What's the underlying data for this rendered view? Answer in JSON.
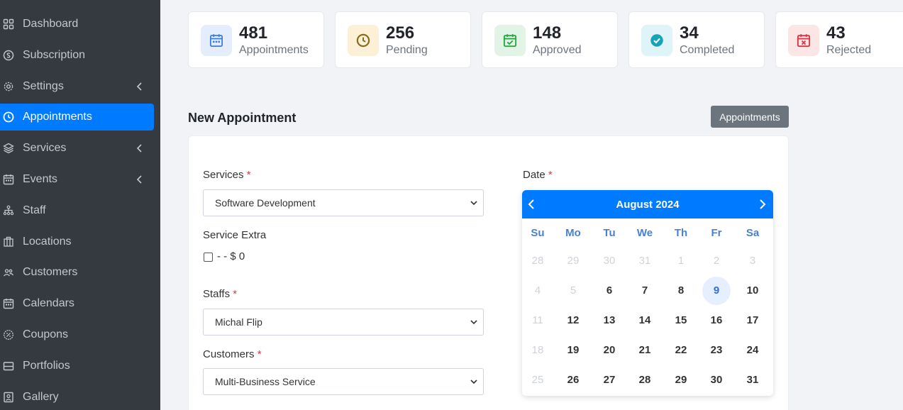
{
  "sidebar": {
    "items": [
      {
        "label": "Dashboard",
        "icon": "grid-icon",
        "submenu": false,
        "active": false
      },
      {
        "label": "Subscription",
        "icon": "dollar-circle-icon",
        "submenu": false,
        "active": false
      },
      {
        "label": "Settings",
        "icon": "gear-icon",
        "submenu": true,
        "active": false
      },
      {
        "label": "Appointments",
        "icon": "clock-icon",
        "submenu": false,
        "active": true
      },
      {
        "label": "Services",
        "icon": "layers-icon",
        "submenu": true,
        "active": false
      },
      {
        "label": "Events",
        "icon": "calendar-icon",
        "submenu": true,
        "active": false
      },
      {
        "label": "Staff",
        "icon": "org-chart-icon",
        "submenu": false,
        "active": false
      },
      {
        "label": "Locations",
        "icon": "building-icon",
        "submenu": false,
        "active": false
      },
      {
        "label": "Customers",
        "icon": "users-icon",
        "submenu": false,
        "active": false
      },
      {
        "label": "Calendars",
        "icon": "calendar-icon",
        "submenu": false,
        "active": false
      },
      {
        "label": "Coupons",
        "icon": "percent-badge-icon",
        "submenu": false,
        "active": false
      },
      {
        "label": "Portfolios",
        "icon": "portfolio-icon",
        "submenu": false,
        "active": false
      },
      {
        "label": "Gallery",
        "icon": "image-icon",
        "submenu": false,
        "active": false
      }
    ]
  },
  "stats": [
    {
      "value": "481",
      "label": "Appointments",
      "icon": "calendar-icon",
      "bg": "#e3edfc",
      "color": "#3b7ddd"
    },
    {
      "value": "256",
      "label": "Pending",
      "icon": "clock-icon",
      "bg": "#fcf1d6",
      "color": "#8a6d1f"
    },
    {
      "value": "148",
      "label": "Approved",
      "icon": "calendar-check-icon",
      "bg": "#e2f4e6",
      "color": "#28a745"
    },
    {
      "value": "34",
      "label": "Completed",
      "icon": "check-circle-icon",
      "bg": "#dff4f8",
      "color": "#17a2b8"
    },
    {
      "value": "43",
      "label": "Rejected",
      "icon": "calendar-x-icon",
      "bg": "#fbe6e6",
      "color": "#dc3545"
    }
  ],
  "section": {
    "title": "New Appointment",
    "button_label": "Appointments"
  },
  "form": {
    "services": {
      "label": "Services",
      "required_mark": "*",
      "value": "Software Development"
    },
    "service_extra": {
      "label": "Service Extra",
      "option_label": "- - $ 0"
    },
    "staffs": {
      "label": "Staffs",
      "required_mark": "*",
      "value": "Michal Flip"
    },
    "customers": {
      "label": "Customers",
      "required_mark": "*",
      "value": "Multi-Business Service"
    },
    "date": {
      "label": "Date",
      "required_mark": "*"
    }
  },
  "calendar": {
    "month_label": "August 2024",
    "weekdays": [
      "Su",
      "Mo",
      "Tu",
      "We",
      "Th",
      "Fr",
      "Sa"
    ],
    "weeks": [
      [
        {
          "d": "28",
          "m": true
        },
        {
          "d": "29",
          "m": true
        },
        {
          "d": "30",
          "m": true
        },
        {
          "d": "31",
          "m": true
        },
        {
          "d": "1",
          "m": true
        },
        {
          "d": "2",
          "m": true
        },
        {
          "d": "3",
          "m": true
        }
      ],
      [
        {
          "d": "4",
          "m": true
        },
        {
          "d": "5",
          "m": true
        },
        {
          "d": "6"
        },
        {
          "d": "7"
        },
        {
          "d": "8"
        },
        {
          "d": "9",
          "today": true
        },
        {
          "d": "10"
        }
      ],
      [
        {
          "d": "11",
          "m": true
        },
        {
          "d": "12"
        },
        {
          "d": "13"
        },
        {
          "d": "14"
        },
        {
          "d": "15"
        },
        {
          "d": "16"
        },
        {
          "d": "17"
        }
      ],
      [
        {
          "d": "18",
          "m": true
        },
        {
          "d": "19"
        },
        {
          "d": "20"
        },
        {
          "d": "21"
        },
        {
          "d": "22"
        },
        {
          "d": "23"
        },
        {
          "d": "24"
        }
      ],
      [
        {
          "d": "25",
          "m": true
        },
        {
          "d": "26"
        },
        {
          "d": "27"
        },
        {
          "d": "28"
        },
        {
          "d": "29"
        },
        {
          "d": "30"
        },
        {
          "d": "31"
        }
      ]
    ]
  }
}
